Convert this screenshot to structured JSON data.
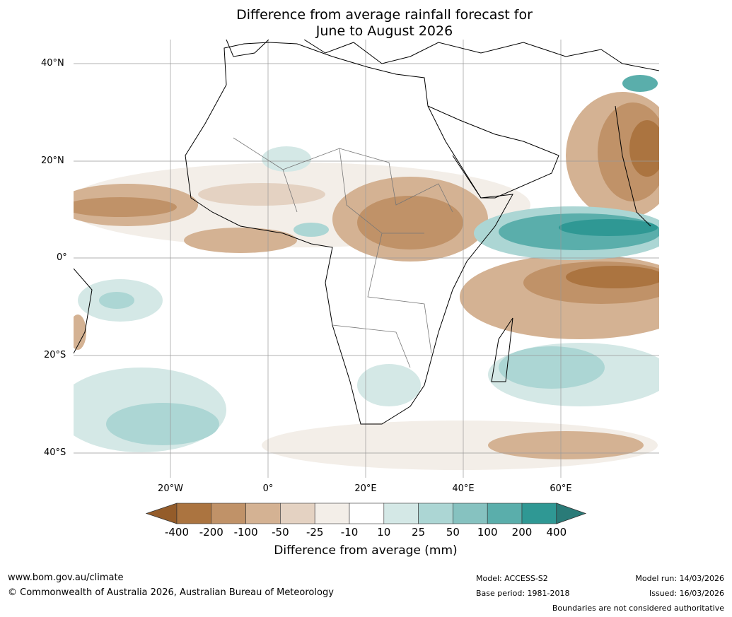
{
  "title_line1": "Difference from average rainfall forecast for",
  "title_line2": "June to August 2026",
  "lat_labels": [
    "40°N",
    "20°N",
    "0°",
    "20°S",
    "40°S"
  ],
  "lon_labels": [
    "20°W",
    "0°",
    "20°E",
    "40°E",
    "60°E"
  ],
  "colorbar": {
    "title": "Difference from average (mm)",
    "ticks": [
      "-400",
      "-200",
      "-100",
      "-50",
      "-25",
      "-10",
      "10",
      "25",
      "50",
      "100",
      "200",
      "400"
    ],
    "colors": [
      "#945c2a",
      "#ab7440",
      "#c09268",
      "#d4b293",
      "#e4d2c2",
      "#f3eee8",
      "#ffffff",
      "#d4e8e6",
      "#acd6d4",
      "#86c2c0",
      "#5aaeab",
      "#2f9894",
      "#2a7b78"
    ]
  },
  "footer": {
    "url": "www.bom.gov.au/climate",
    "copyright": "© Commonwealth of Australia 2026, Australian Bureau of Meteorology",
    "model": "Model: ACCESS-S2",
    "base_period": "Base period: 1981-2018",
    "model_run": "Model run: 14/03/2026",
    "issued": "Issued: 16/03/2026",
    "disclaimer": "Boundaries are not considered authoritative"
  }
}
